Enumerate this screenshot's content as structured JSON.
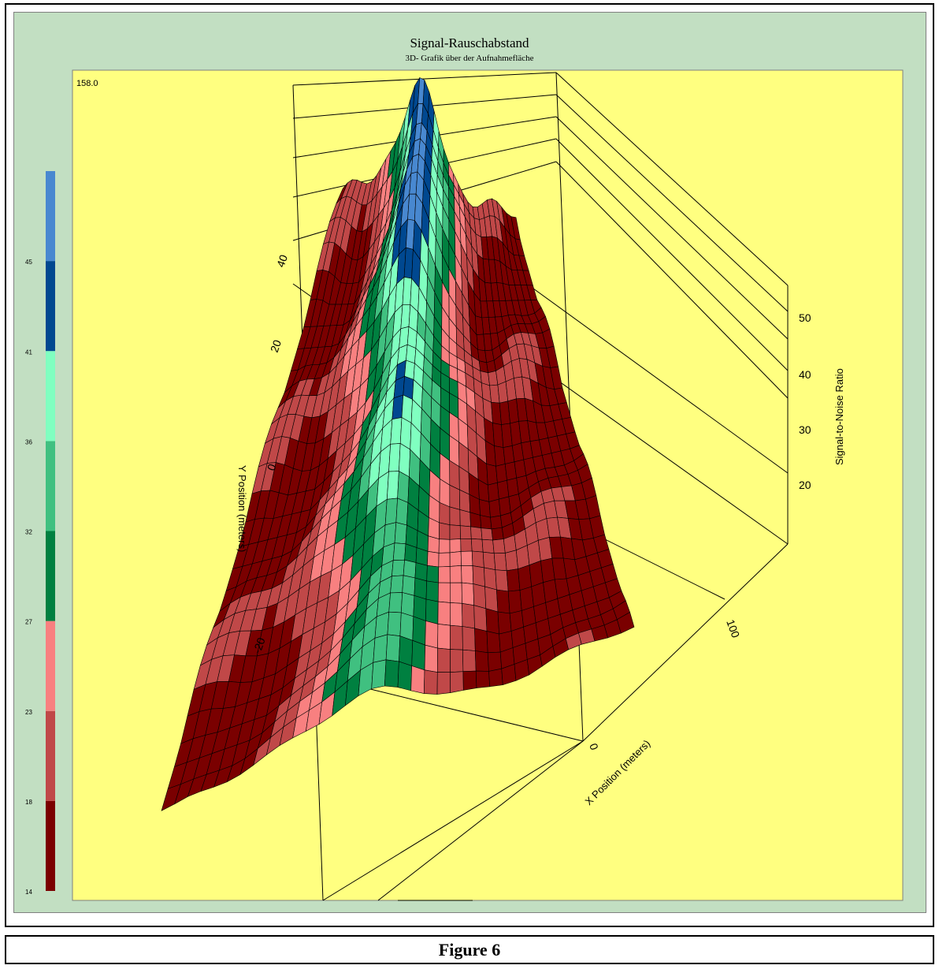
{
  "figure": {
    "caption": "Figure 6"
  },
  "chart_data": {
    "type": "surface",
    "title": "Signal-Rauschabstand",
    "subtitle": "3D- Grafik über der Aufnahmefläche",
    "corner_value": "158.0",
    "xlabel": "X Position (meters)",
    "ylabel": "Y Position (meters)",
    "zlabel": "Signal-to-Noise Ratio",
    "x_ticks": [
      "0",
      "100"
    ],
    "y_ticks": [
      "40",
      "20",
      "0",
      "-20"
    ],
    "z_ticks": [
      "50",
      "40",
      "30",
      "20"
    ],
    "legend": {
      "placement": "left",
      "bounds": [
        "14",
        "18",
        "23",
        "27",
        "32",
        "36",
        "41",
        "45"
      ],
      "colors": [
        "#7a0000",
        "#c04848",
        "#f88080",
        "#008040",
        "#40c080",
        "#80ffc0",
        "#004890",
        "#4888d0"
      ]
    },
    "surface_colors": {
      "background": "#ffff80",
      "panel": "#c2dfc2"
    }
  }
}
